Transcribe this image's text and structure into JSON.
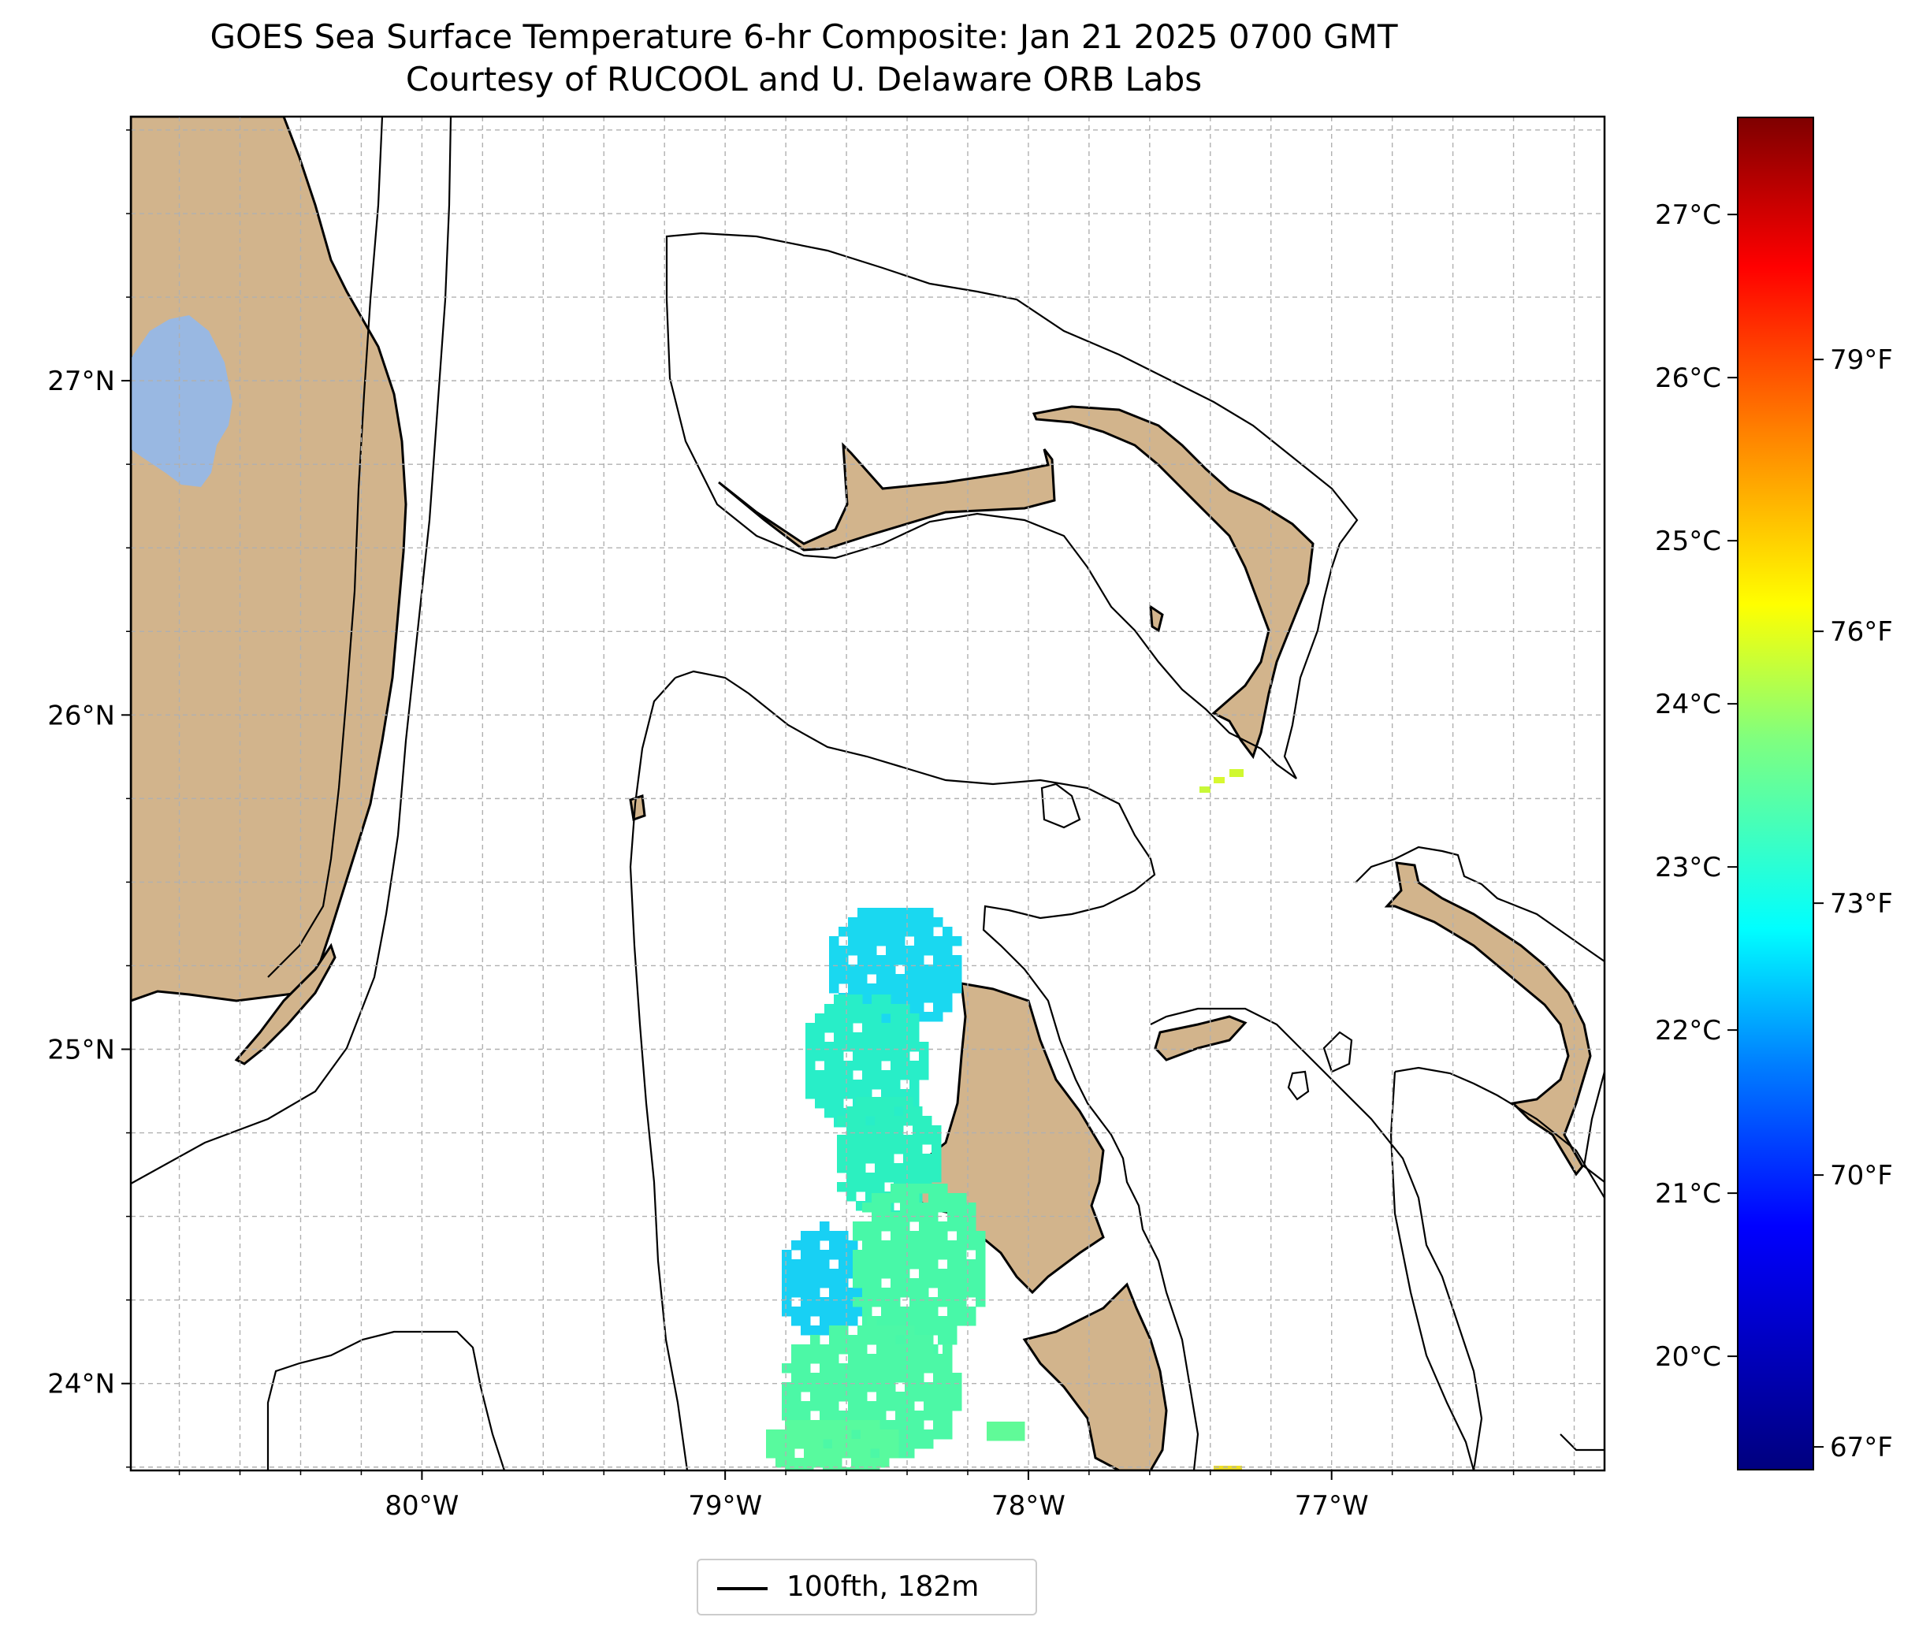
{
  "title": {
    "line1": "GOES Sea Surface Temperature 6-hr Composite: Jan 21 2025 0700 GMT",
    "line2": "Courtesy of RUCOOL and U. Delaware ORB Labs"
  },
  "map": {
    "extent": {
      "lon_min": -80.96,
      "lon_max": -76.1,
      "lat_min": 23.74,
      "lat_max": 27.79
    },
    "lat_ticks": [
      {
        "value": 27,
        "label": "27°N"
      },
      {
        "value": 26,
        "label": "26°N"
      },
      {
        "value": 25,
        "label": "25°N"
      },
      {
        "value": 24,
        "label": "24°N"
      }
    ],
    "lon_ticks": [
      {
        "value": -80,
        "label": "80°W"
      },
      {
        "value": -79,
        "label": "79°W"
      },
      {
        "value": -78,
        "label": "78°W"
      },
      {
        "value": -77,
        "label": "77°W"
      }
    ],
    "land_color": "#d2b48c",
    "lake_color": "#99b8e2",
    "gridlines": true
  },
  "legend": {
    "label": "100fth, 182m",
    "placement": "lower-center"
  },
  "colorbar": {
    "colormap": "jet",
    "range_c": [
      19.3,
      27.6
    ],
    "celsius_ticks": [
      "20°C",
      "21°C",
      "22°C",
      "23°C",
      "24°C",
      "25°C",
      "26°C",
      "27°C"
    ],
    "fahrenheit_ticks": [
      "67°F",
      "70°F",
      "73°F",
      "76°F",
      "79°F"
    ]
  }
}
